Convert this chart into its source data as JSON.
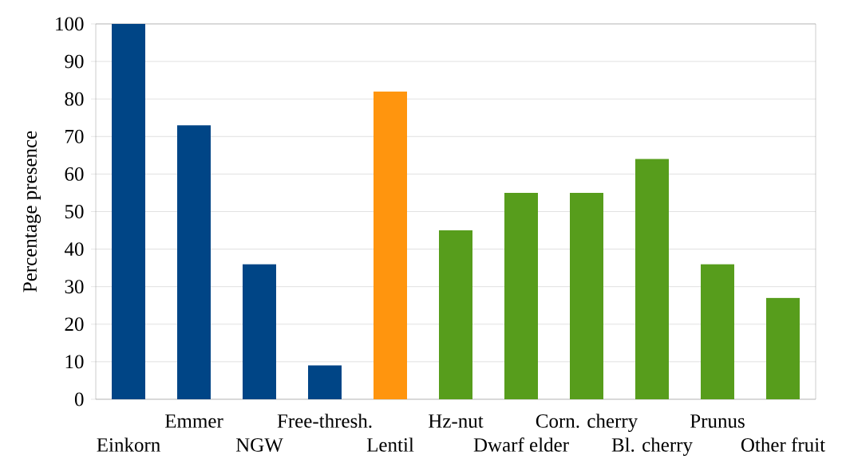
{
  "chart_data": {
    "type": "bar",
    "ylabel": "Percentage presence",
    "categories": [
      "Einkorn",
      "Emmer",
      "NGW",
      "Free-thresh.",
      "Lentil",
      "Hz-nut",
      "Dwarf elder",
      "Corn. cherry",
      "Bl. cherry",
      "Prunus",
      "Other fruit"
    ],
    "values": [
      100,
      73,
      36,
      9,
      82,
      45,
      55,
      55,
      64,
      36,
      27
    ],
    "colors": [
      "#004586",
      "#004586",
      "#004586",
      "#004586",
      "#ff950e",
      "#579d1c",
      "#579d1c",
      "#579d1c",
      "#579d1c",
      "#579d1c",
      "#579d1c"
    ],
    "ylim": [
      0,
      100
    ],
    "yticks": [
      0,
      10,
      20,
      30,
      40,
      50,
      60,
      70,
      80,
      90,
      100
    ],
    "grid": "y"
  }
}
